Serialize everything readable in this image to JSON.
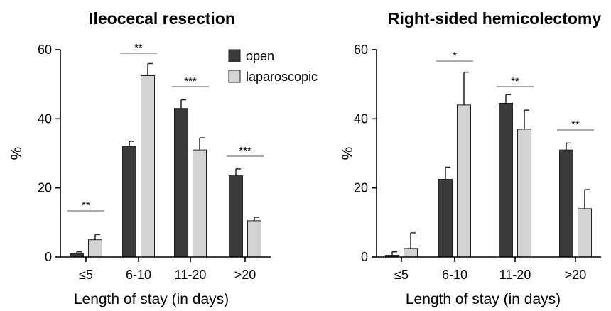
{
  "colors": {
    "open": "#3a3a3a",
    "laparoscopic": "#d3d3d3",
    "axis": "#000000"
  },
  "chart_data": [
    {
      "type": "bar",
      "title": "Ileocecal resection",
      "xlabel": "Length of stay (in days)",
      "ylabel": "%",
      "ylim": [
        0,
        60
      ],
      "yticks": [
        "0",
        "20",
        "40",
        "60"
      ],
      "categories": [
        "≤5",
        "6-10",
        "11-20",
        ">20"
      ],
      "series": [
        {
          "name": "open",
          "values": [
            1,
            32,
            43,
            23.5
          ],
          "errors": [
            0.5,
            1.5,
            2.5,
            2
          ]
        },
        {
          "name": "laparoscopic",
          "values": [
            5,
            52.5,
            31,
            10.5
          ],
          "errors": [
            1.5,
            3.5,
            3.5,
            1
          ]
        }
      ],
      "significance": [
        "**",
        "**",
        "***",
        "***"
      ],
      "legend": {
        "position": "top-right",
        "entries": [
          "open",
          "laparoscopic"
        ]
      }
    },
    {
      "type": "bar",
      "title": "Right-sided hemicolectomy",
      "xlabel": "Length of stay (in days)",
      "ylabel": "%",
      "ylim": [
        0,
        60
      ],
      "yticks": [
        "0",
        "20",
        "40",
        "60"
      ],
      "categories": [
        "≤5",
        "6-10",
        "11-20",
        ">20"
      ],
      "series": [
        {
          "name": "open",
          "values": [
            0.5,
            22.5,
            44.5,
            31
          ],
          "errors": [
            1,
            3.5,
            2.5,
            2
          ]
        },
        {
          "name": "laparoscopic",
          "values": [
            2.5,
            44,
            37,
            14
          ],
          "errors": [
            4.5,
            9.5,
            5.5,
            5.5
          ]
        }
      ],
      "significance": [
        "",
        "*",
        "**",
        "**"
      ]
    }
  ]
}
